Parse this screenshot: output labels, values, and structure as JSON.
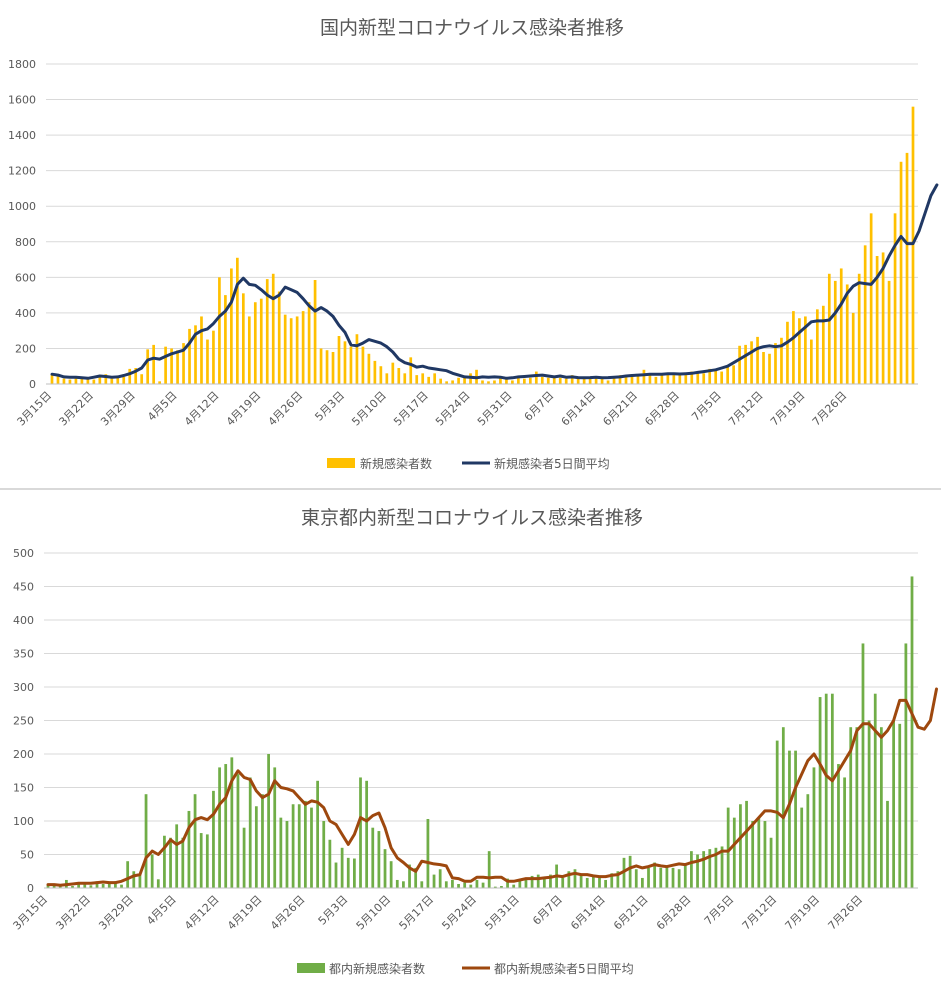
{
  "chart_data": [
    {
      "type": "bar+line",
      "title": "国内新型コロナウイルス感染者推移",
      "ylim": [
        0,
        1800
      ],
      "yticks": [
        "0",
        "200",
        "400",
        "600",
        "800",
        "1000",
        "1200",
        "1400",
        "1600",
        "1800"
      ],
      "x_tick_labels": [
        "3月15日",
        "3月22日",
        "3月29日",
        "4月5日",
        "4月12日",
        "4月19日",
        "4月26日",
        "5月3日",
        "5月10日",
        "5月17日",
        "5月24日",
        "5月31日",
        "6月7日",
        "6月14日",
        "6月21日",
        "6月28日",
        "7月5日",
        "7月12日",
        "7月19日",
        "7月26日"
      ],
      "bar_color": "#FFC000",
      "line_color": "#203864",
      "series": [
        {
          "name": "新規感染者数",
          "values": [
            55,
            45,
            30,
            25,
            35,
            40,
            30,
            25,
            45,
            55,
            30,
            35,
            40,
            85,
            90,
            55,
            195,
            220,
            15,
            210,
            200,
            190,
            230,
            310,
            330,
            380,
            250,
            300,
            600,
            500,
            650,
            710,
            510,
            380,
            460,
            480,
            590,
            620,
            520,
            390,
            370,
            380,
            410,
            460,
            585,
            200,
            190,
            180,
            270,
            240,
            210,
            280,
            210,
            170,
            130,
            100,
            60,
            120,
            90,
            60,
            150,
            50,
            60,
            40,
            60,
            30,
            15,
            20,
            35,
            40,
            60,
            80,
            20,
            15,
            20,
            35,
            25,
            20,
            40,
            30,
            35,
            70,
            40,
            35,
            45,
            35,
            30,
            50,
            40,
            35,
            30,
            40,
            30,
            20,
            45,
            50,
            40,
            55,
            45,
            80,
            60,
            40,
            60,
            55,
            50,
            60,
            50,
            70,
            60,
            60,
            85,
            80,
            70,
            100,
            105,
            215,
            220,
            240,
            265,
            180,
            170,
            230,
            260,
            350,
            410,
            370,
            380,
            250,
            420,
            440,
            620,
            580,
            650,
            560,
            400,
            620,
            780,
            960,
            720,
            740,
            580,
            960,
            1250,
            1300,
            1560
          ]
        },
        {
          "name": "新規感染者5日間平均",
          "values": [
            55,
            50,
            40,
            38,
            38,
            35,
            32,
            38,
            45,
            42,
            38,
            40,
            48,
            58,
            72,
            90,
            135,
            145,
            140,
            155,
            170,
            180,
            190,
            230,
            280,
            300,
            310,
            340,
            380,
            410,
            460,
            560,
            595,
            560,
            555,
            530,
            500,
            480,
            500,
            545,
            530,
            515,
            480,
            440,
            410,
            430,
            410,
            380,
            330,
            290,
            220,
            215,
            230,
            250,
            240,
            230,
            210,
            180,
            140,
            120,
            110,
            95,
            100,
            90,
            85,
            80,
            75,
            60,
            50,
            40,
            38,
            35,
            40,
            38,
            40,
            38,
            32,
            35,
            40,
            42,
            45,
            48,
            50,
            45,
            40,
            45,
            38,
            40,
            36,
            35,
            36,
            38,
            35,
            36,
            38,
            40,
            45,
            48,
            50,
            52,
            55,
            55,
            55,
            58,
            58,
            56,
            58,
            60,
            65,
            70,
            75,
            80,
            90,
            100,
            120,
            140,
            160,
            180,
            200,
            210,
            215,
            210,
            215,
            235,
            260,
            290,
            320,
            350,
            355,
            355,
            360,
            400,
            450,
            510,
            550,
            570,
            565,
            560,
            600,
            650,
            720,
            780,
            830,
            790,
            790,
            860,
            960,
            1060,
            1120
          ]
        }
      ]
    },
    {
      "type": "bar+line",
      "title": "東京都内新型コロナウイルス感染者推移",
      "ylim": [
        0,
        500
      ],
      "yticks": [
        "0",
        "50",
        "100",
        "150",
        "200",
        "250",
        "300",
        "350",
        "400",
        "450",
        "500"
      ],
      "x_tick_labels": [
        "3月15日",
        "3月22日",
        "3月29日",
        "4月5日",
        "4月12日",
        "4月19日",
        "4月26日",
        "5月3日",
        "5月10日",
        "5月17日",
        "5月24日",
        "5月31日",
        "6月7日",
        "6月14日",
        "6月21日",
        "6月28日",
        "7月5日",
        "7月12日",
        "7月19日",
        "7月26日"
      ],
      "bar_color": "#70AD47",
      "line_color": "#9E480E",
      "series": [
        {
          "name": "都内新規感染者数",
          "values": [
            5,
            5,
            3,
            12,
            3,
            7,
            8,
            4,
            10,
            6,
            8,
            10,
            5,
            40,
            25,
            20,
            140,
            50,
            13,
            78,
            75,
            95,
            75,
            115,
            140,
            82,
            80,
            145,
            180,
            185,
            195,
            170,
            90,
            165,
            122,
            140,
            200,
            180,
            105,
            100,
            125,
            125,
            130,
            120,
            160,
            100,
            72,
            38,
            60,
            45,
            44,
            165,
            160,
            90,
            85,
            58,
            40,
            12,
            10,
            35,
            30,
            10,
            103,
            20,
            28,
            10,
            12,
            6,
            8,
            5,
            12,
            8,
            55,
            2,
            3,
            14,
            5,
            12,
            14,
            18,
            20,
            14,
            20,
            35,
            15,
            25,
            28,
            20,
            15,
            18,
            15,
            12,
            22,
            25,
            45,
            48,
            28,
            15,
            30,
            38,
            30,
            32,
            30,
            28,
            35,
            55,
            50,
            55,
            58,
            60,
            62,
            120,
            105,
            125,
            130,
            100,
            105,
            100,
            75,
            220,
            240,
            205,
            205,
            120,
            140,
            180,
            285,
            290,
            290,
            185,
            165,
            240,
            240,
            365,
            250,
            290,
            240,
            130,
            250,
            245,
            365,
            465
          ]
        },
        {
          "name": "都内新規感染者5日間平均",
          "values": [
            5,
            5,
            4,
            5,
            6,
            7,
            7,
            7,
            8,
            9,
            8,
            8,
            10,
            14,
            18,
            20,
            45,
            55,
            50,
            60,
            72,
            65,
            70,
            90,
            102,
            105,
            102,
            110,
            125,
            135,
            160,
            175,
            165,
            162,
            145,
            135,
            140,
            160,
            150,
            148,
            145,
            135,
            125,
            130,
            128,
            120,
            100,
            95,
            80,
            65,
            80,
            105,
            100,
            108,
            112,
            90,
            60,
            45,
            38,
            30,
            25,
            40,
            38,
            36,
            35,
            33,
            15,
            14,
            10,
            10,
            16,
            16,
            15,
            16,
            16,
            10,
            10,
            12,
            14,
            14,
            14,
            15,
            16,
            18,
            17,
            20,
            22,
            20,
            20,
            18,
            17,
            17,
            19,
            20,
            25,
            30,
            33,
            30,
            32,
            35,
            33,
            32,
            34,
            36,
            35,
            38,
            40,
            43,
            47,
            50,
            55,
            55,
            65,
            75,
            85,
            95,
            105,
            115,
            115,
            113,
            105,
            125,
            150,
            170,
            190,
            200,
            185,
            168,
            160,
            175,
            190,
            205,
            235,
            245,
            245,
            235,
            225,
            235,
            250,
            280,
            280,
            260,
            240,
            237,
            250,
            297
          ]
        }
      ]
    }
  ]
}
